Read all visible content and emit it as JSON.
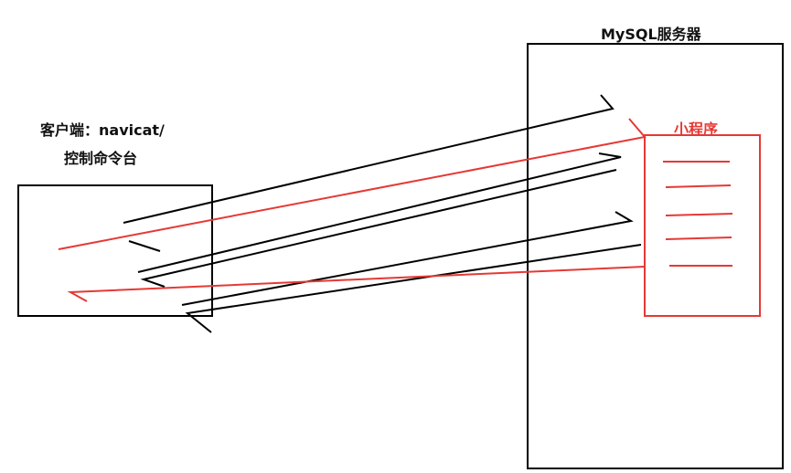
{
  "client": {
    "label_line1": "客户端：navicat/",
    "label_line2": "控制命令台"
  },
  "server": {
    "title": "MySQL服务器"
  },
  "program": {
    "title": "小程序"
  },
  "colors": {
    "stroke": "#000000",
    "accent": "#e53935"
  }
}
